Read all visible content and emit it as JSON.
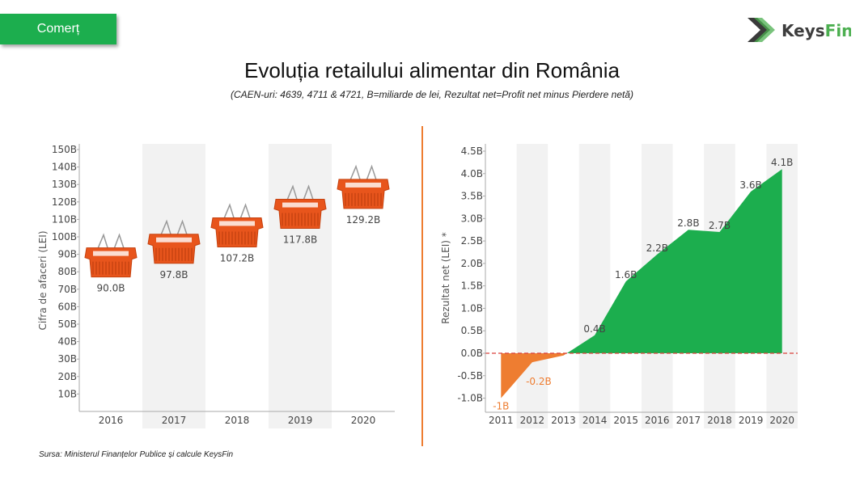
{
  "header": {
    "tag_label": "Comerț",
    "logo_text": "KeysFin",
    "title": "Evoluția retailului alimentar din România",
    "subtitle": "(CAEN-uri: 4639, 4711 & 4721, B=miliarde de lei, Rezultat net=Profit net minus Pierdere netă)"
  },
  "footer": {
    "source": "Sursa: Ministerul Finanțelor Publice și calcule KeysFin"
  },
  "colors": {
    "green": "#1cae4e",
    "orange": "#ee7d31",
    "basket": "#e8551c",
    "band": "#f2f2f2",
    "zero_line": "#d9403a"
  },
  "chart_data": [
    {
      "type": "bar",
      "marker": "shopping-basket",
      "ylabel": "Cifra de afaceri (LEI)",
      "categories": [
        "2016",
        "2017",
        "2018",
        "2019",
        "2020"
      ],
      "values": [
        90.0,
        97.8,
        107.2,
        117.8,
        129.2
      ],
      "labels": [
        "90.0B",
        "97.8B",
        "107.2B",
        "117.8B",
        "129.2B"
      ],
      "ylim": [
        0,
        150
      ],
      "yticks": [
        "10B",
        "20B",
        "30B",
        "40B",
        "50B",
        "60B",
        "70B",
        "80B",
        "90B",
        "100B",
        "110B",
        "120B",
        "130B",
        "140B",
        "150B"
      ],
      "grid": false,
      "alternating_bands": true
    },
    {
      "type": "area",
      "ylabel": "Rezultat net (LEI) *",
      "categories": [
        "2011",
        "2012",
        "2013",
        "2014",
        "2015",
        "2016",
        "2017",
        "2018",
        "2019",
        "2020"
      ],
      "values": [
        -1.0,
        -0.2,
        -0.05,
        0.4,
        1.6,
        2.2,
        2.75,
        2.7,
        3.6,
        4.1
      ],
      "labels": [
        "-1B",
        "-0.2B",
        "",
        "0.4B",
        "1.6B",
        "2.2B",
        "2.8B",
        "2.7B",
        "3.6B",
        "4.1B"
      ],
      "ylim": [
        -1.3,
        4.6
      ],
      "yticks": [
        "-1.0B",
        "-0.5B",
        "0.0B",
        "0.5B",
        "1.0B",
        "1.5B",
        "2.0B",
        "2.5B",
        "3.0B",
        "3.5B",
        "4.0B",
        "4.5B"
      ],
      "ytick_values": [
        -1.0,
        -0.5,
        0.0,
        0.5,
        1.0,
        1.5,
        2.0,
        2.5,
        3.0,
        3.5,
        4.0,
        4.5
      ],
      "positive_color": "green",
      "negative_color": "orange",
      "zero_line": "dashed red",
      "grid": false,
      "alternating_bands": true
    }
  ]
}
